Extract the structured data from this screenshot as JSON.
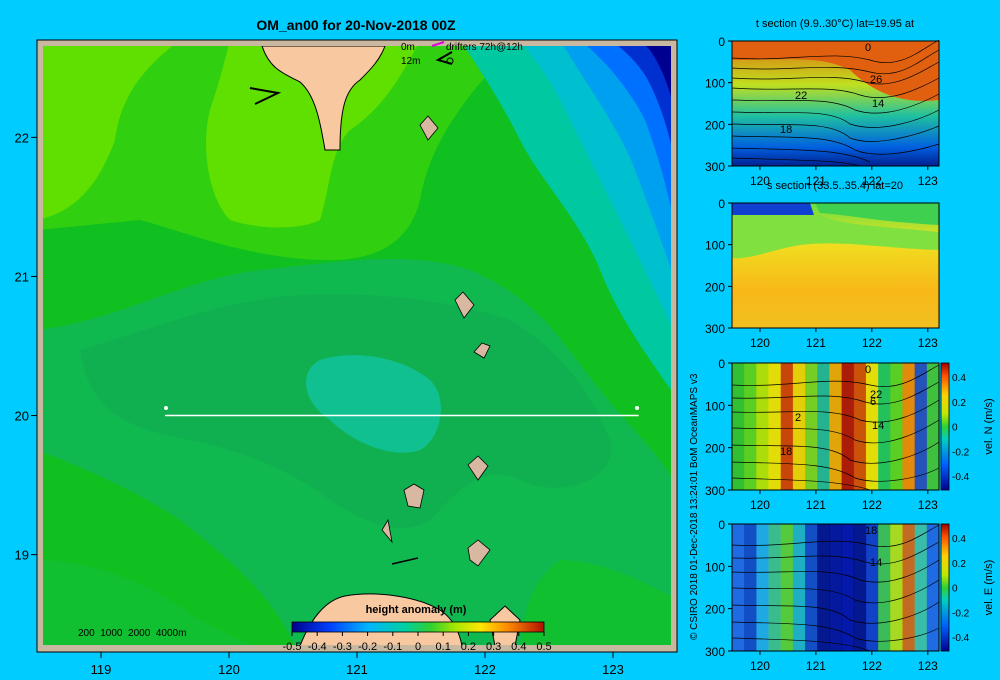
{
  "main_map": {
    "title": "OM_an00 for 20-Nov-2018 00Z",
    "lon_ticks": [
      "119",
      "120",
      "121",
      "122",
      "123"
    ],
    "lat_ticks": [
      "22",
      "21",
      "20",
      "19"
    ],
    "legend_depth": "0m",
    "legend_depth2": "12m",
    "legend_drifters": "drifters 72h@12h",
    "bathy_contours": "200  1000  2000  4000m",
    "colorbar_title": "height anomaly (m)",
    "colorbar_ticks": [
      "-0.5",
      "-0.4",
      "-0.3",
      "-0.2",
      "-0.1",
      "0",
      "0.1",
      "0.2",
      "0.3",
      "0.4",
      "0.5"
    ],
    "section_line": {
      "lon_start": 119.5,
      "lon_end": 123.2,
      "lat": 20
    }
  },
  "credit": "© CSIRO 2018   01-Dec-2018 13:24:01 BoM OceanMAPS v3",
  "panels": [
    {
      "title": "t section (9.9..30°C) lat=19.95 at",
      "labels": [
        "0",
        "26",
        "22",
        "18",
        "14"
      ],
      "colorbar": null
    },
    {
      "title": "s section (33.5..35.4) lat=20",
      "labels": [],
      "colorbar": null
    },
    {
      "title": "",
      "labels": [
        "0",
        "6",
        "2",
        "18",
        "14",
        "22"
      ],
      "colorbar": {
        "label": "vel. N (m/s)",
        "ticks": [
          "0.4",
          "0.2",
          "0",
          "-0.2",
          "-0.4"
        ]
      }
    },
    {
      "title": "",
      "labels": [
        "18",
        "14"
      ],
      "colorbar": {
        "label": "vel. E (m/s)",
        "ticks": [
          "0.4",
          "0.2",
          "0",
          "-0.2",
          "-0.4"
        ]
      }
    }
  ],
  "panel_axes": {
    "x_ticks": [
      "120",
      "121",
      "122",
      "123"
    ],
    "y_ticks": [
      "0",
      "100",
      "200",
      "300"
    ]
  },
  "chart_data": [
    {
      "type": "heatmap",
      "title": "OM_an00 for 20-Nov-2018 00Z",
      "xlabel": "",
      "ylabel": "",
      "xlim": [
        118.5,
        123.5
      ],
      "ylim": [
        18.3,
        22.7
      ],
      "x_ticks": [
        119,
        120,
        121,
        122,
        123
      ],
      "y_ticks": [
        19,
        20,
        21,
        22
      ],
      "variable": "height anomaly (m)",
      "value_range": [
        -0.5,
        0.5
      ]
    },
    {
      "type": "heatmap",
      "title": "t section (9.9..30°C) lat=19.95 at",
      "xlim": [
        119.5,
        123.2
      ],
      "ylim": [
        300,
        0
      ],
      "value_range": [
        9.9,
        30
      ]
    },
    {
      "type": "heatmap",
      "title": "s section (33.5..35.4) lat=20",
      "xlim": [
        119.5,
        123.2
      ],
      "ylim": [
        300,
        0
      ],
      "value_range": [
        33.5,
        35.4
      ]
    },
    {
      "type": "heatmap",
      "title": "",
      "variable": "vel. N (m/s)",
      "xlim": [
        119.5,
        123.2
      ],
      "ylim": [
        300,
        0
      ],
      "value_range": [
        -0.4,
        0.4
      ]
    },
    {
      "type": "heatmap",
      "title": "",
      "variable": "vel. E (m/s)",
      "xlim": [
        119.5,
        123.2
      ],
      "ylim": [
        300,
        0
      ],
      "value_range": [
        -0.4,
        0.4
      ]
    }
  ]
}
